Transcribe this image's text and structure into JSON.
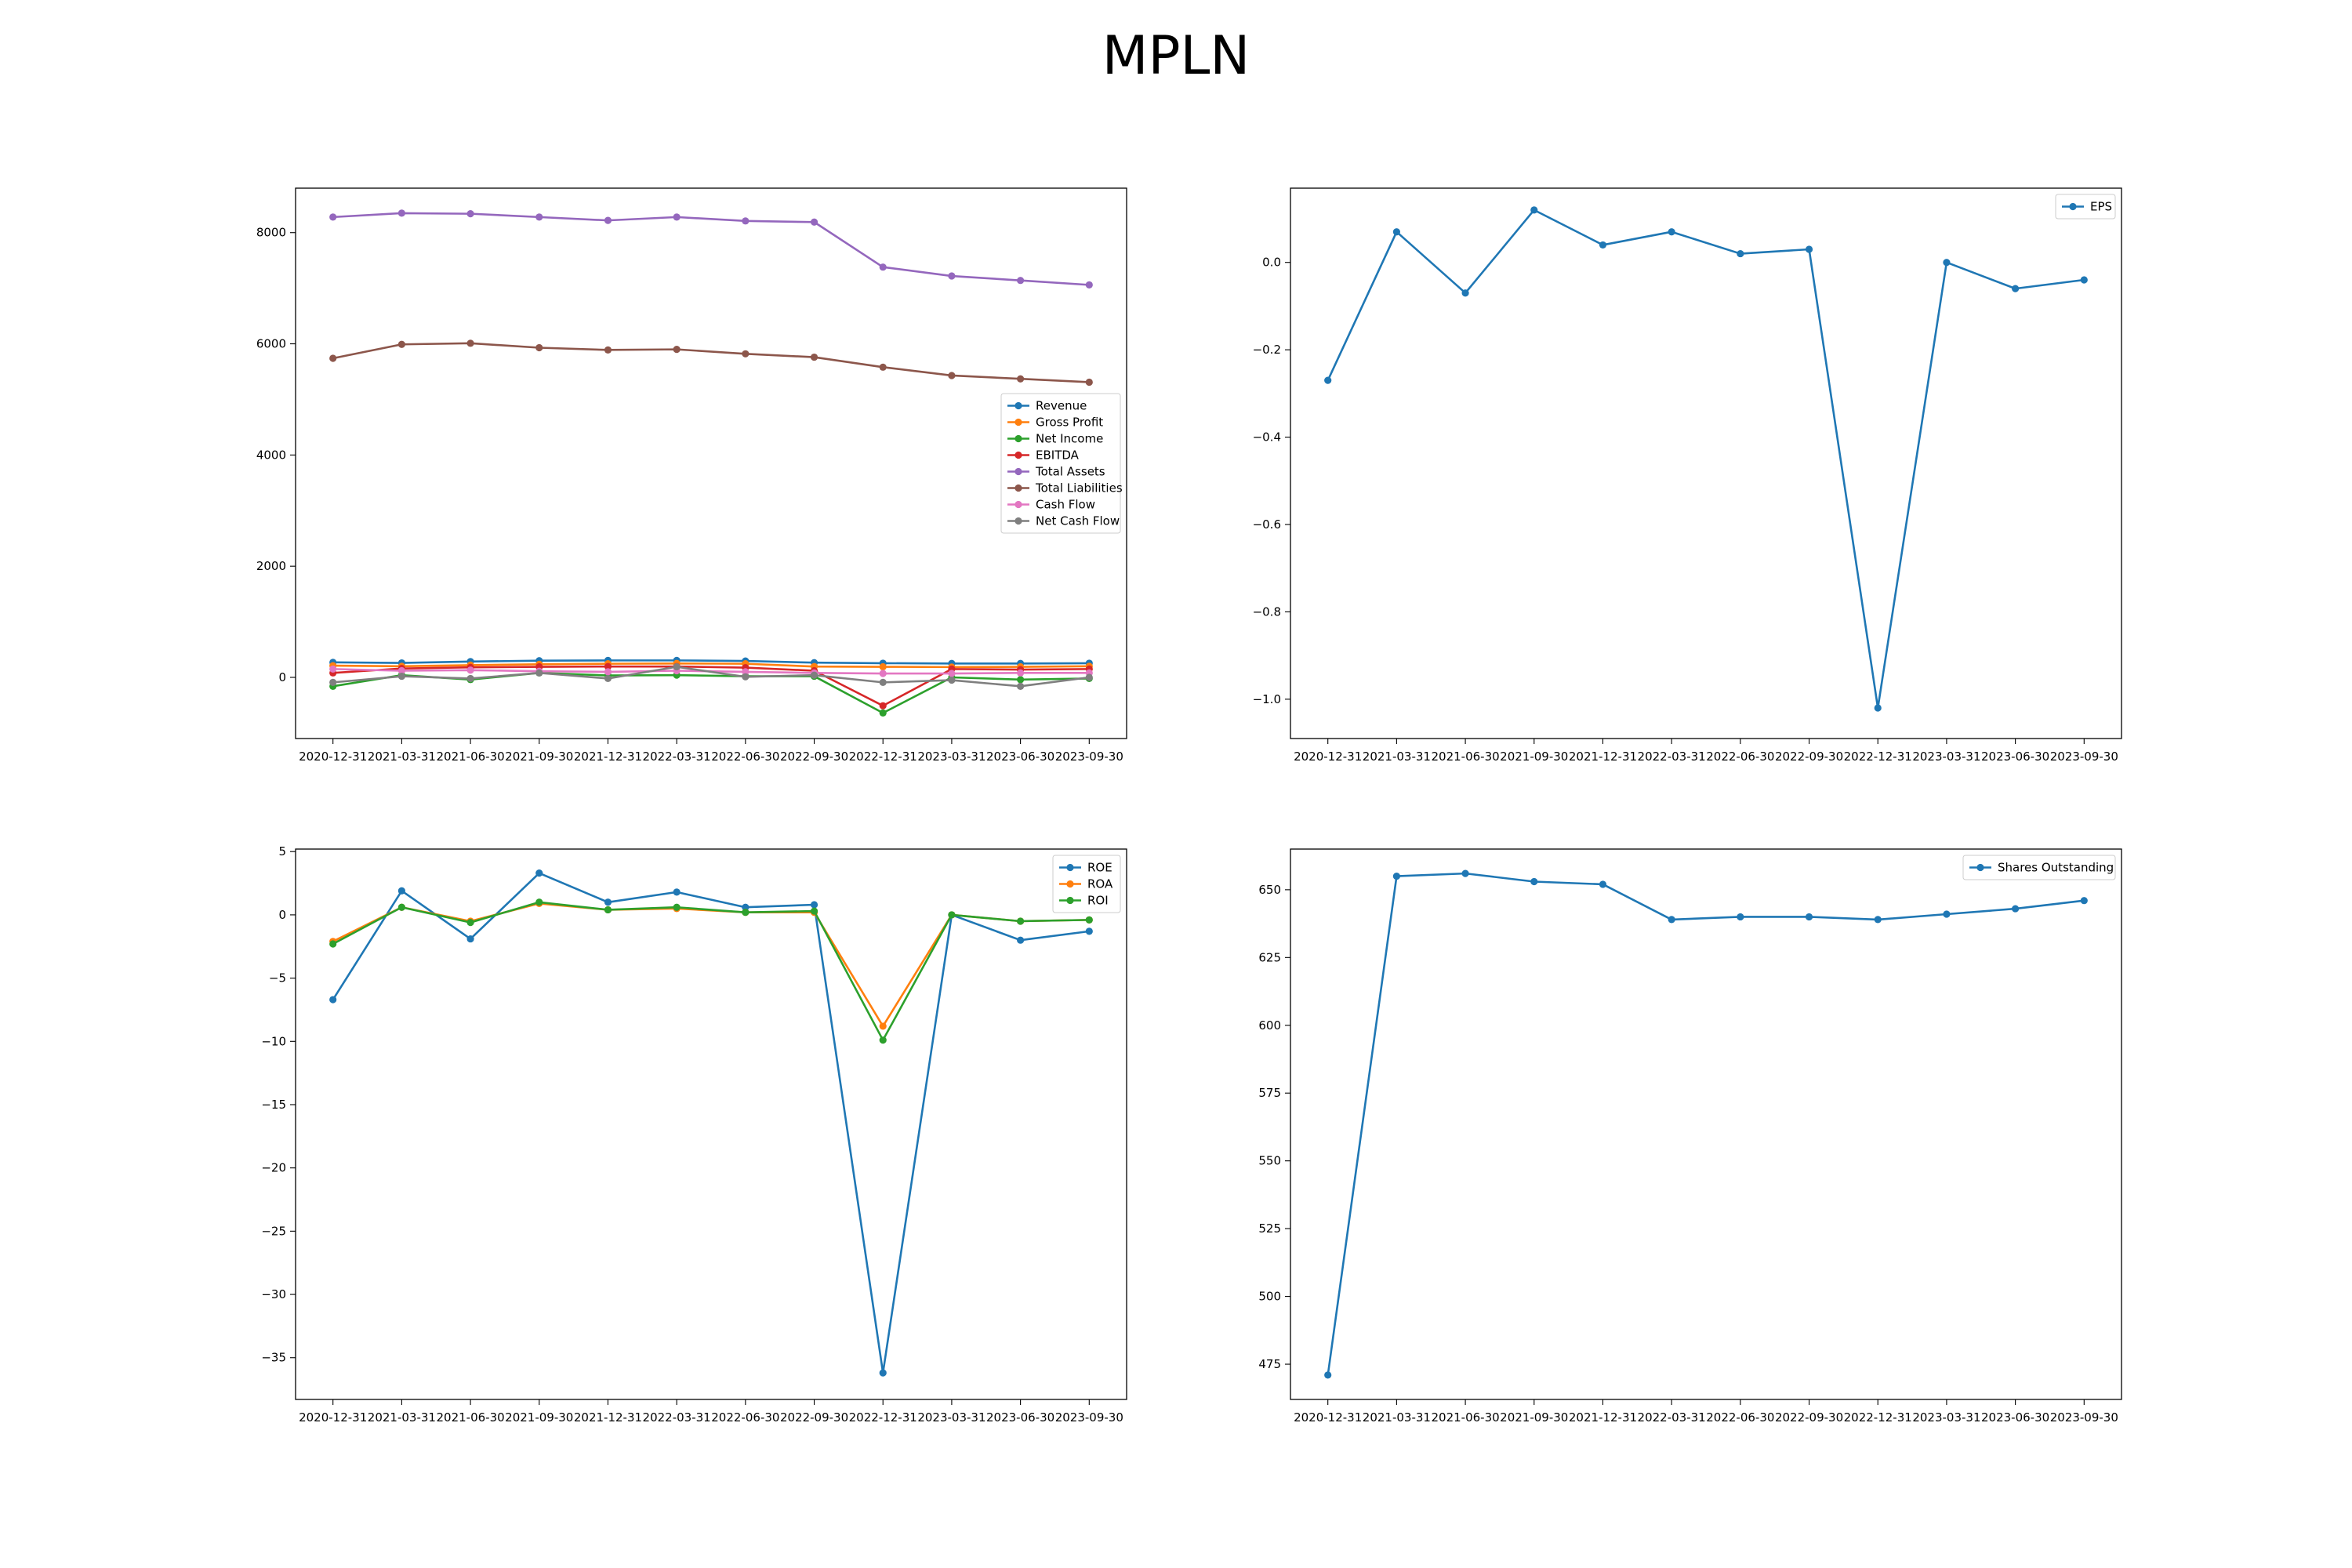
{
  "figure": {
    "title": "MPLN"
  },
  "chart_data": [
    {
      "type": "line",
      "title": "",
      "xlabel": "",
      "ylabel": "",
      "categories": [
        "2020-12-31",
        "2021-03-31",
        "2021-06-30",
        "2021-09-30",
        "2021-12-31",
        "2022-03-31",
        "2022-06-30",
        "2022-09-30",
        "2022-12-31",
        "2023-03-31",
        "2023-06-30",
        "2023-09-30"
      ],
      "ylim": [
        -1100,
        8800
      ],
      "yticks": [
        0,
        2000,
        4000,
        6000,
        8000
      ],
      "legend_position": "center-right",
      "series": [
        {
          "name": "Revenue",
          "color": "#1f77b4",
          "values": [
            270,
            260,
            285,
            300,
            305,
            305,
            295,
            265,
            255,
            250,
            250,
            255
          ]
        },
        {
          "name": "Gross Profit",
          "color": "#ff7f0e",
          "values": [
            210,
            200,
            220,
            235,
            245,
            250,
            245,
            195,
            190,
            185,
            190,
            200
          ]
        },
        {
          "name": "Net Income",
          "color": "#2ca02c",
          "values": [
            -160,
            40,
            -40,
            80,
            35,
            40,
            20,
            20,
            -640,
            0,
            -40,
            -20
          ]
        },
        {
          "name": "EBITDA",
          "color": "#d62728",
          "values": [
            80,
            160,
            180,
            190,
            195,
            195,
            175,
            120,
            -510,
            150,
            140,
            150
          ]
        },
        {
          "name": "Total Assets",
          "color": "#9467bd",
          "values": [
            8280,
            8350,
            8340,
            8280,
            8220,
            8280,
            8210,
            8190,
            7380,
            7220,
            7140,
            7060
          ]
        },
        {
          "name": "Total Liabilities",
          "color": "#8c564b",
          "values": [
            5740,
            5990,
            6010,
            5930,
            5890,
            5900,
            5820,
            5760,
            5580,
            5430,
            5370,
            5310
          ]
        },
        {
          "name": "Cash Flow",
          "color": "#e377c2",
          "values": [
            150,
            120,
            130,
            110,
            100,
            120,
            100,
            80,
            70,
            70,
            80,
            80
          ]
        },
        {
          "name": "Net Cash Flow",
          "color": "#7f7f7f",
          "values": [
            -90,
            20,
            -20,
            80,
            -20,
            190,
            10,
            40,
            -90,
            -50,
            -160,
            0
          ]
        }
      ]
    },
    {
      "type": "line",
      "title": "",
      "xlabel": "",
      "ylabel": "",
      "categories": [
        "2020-12-31",
        "2021-03-31",
        "2021-06-30",
        "2021-09-30",
        "2021-12-31",
        "2022-03-31",
        "2022-06-30",
        "2022-09-30",
        "2022-12-31",
        "2023-03-31",
        "2023-06-30",
        "2023-09-30"
      ],
      "ylim": [
        -1.09,
        0.17
      ],
      "yticks": [
        -1.0,
        -0.8,
        -0.6,
        -0.4,
        -0.2,
        0.0
      ],
      "legend_position": "top-right",
      "series": [
        {
          "name": "EPS",
          "color": "#1f77b4",
          "values": [
            -0.27,
            0.07,
            -0.07,
            0.12,
            0.04,
            0.07,
            0.02,
            0.03,
            -1.02,
            0.0,
            -0.06,
            -0.04
          ]
        }
      ]
    },
    {
      "type": "line",
      "title": "",
      "xlabel": "",
      "ylabel": "",
      "categories": [
        "2020-12-31",
        "2021-03-31",
        "2021-06-30",
        "2021-09-30",
        "2021-12-31",
        "2022-03-31",
        "2022-06-30",
        "2022-09-30",
        "2022-12-31",
        "2023-03-31",
        "2023-06-30",
        "2023-09-30"
      ],
      "ylim": [
        -38.3,
        5.2
      ],
      "yticks": [
        -35,
        -30,
        -25,
        -20,
        -15,
        -10,
        -5,
        0,
        5
      ],
      "legend_position": "top-right",
      "series": [
        {
          "name": "ROE",
          "color": "#1f77b4",
          "values": [
            -6.7,
            1.9,
            -1.9,
            3.3,
            1.0,
            1.8,
            0.6,
            0.8,
            -36.2,
            0.0,
            -2.0,
            -1.3
          ]
        },
        {
          "name": "ROA",
          "color": "#ff7f0e",
          "values": [
            -2.1,
            0.6,
            -0.5,
            0.9,
            0.4,
            0.5,
            0.2,
            0.2,
            -8.8,
            0.0,
            -0.5,
            -0.4
          ]
        },
        {
          "name": "ROI",
          "color": "#2ca02c",
          "values": [
            -2.3,
            0.6,
            -0.6,
            1.0,
            0.4,
            0.6,
            0.2,
            0.3,
            -9.9,
            0.0,
            -0.5,
            -0.4
          ]
        }
      ]
    },
    {
      "type": "line",
      "title": "",
      "xlabel": "",
      "ylabel": "",
      "categories": [
        "2020-12-31",
        "2021-03-31",
        "2021-06-30",
        "2021-09-30",
        "2021-12-31",
        "2022-03-31",
        "2022-06-30",
        "2022-09-30",
        "2022-12-31",
        "2023-03-31",
        "2023-06-30",
        "2023-09-30"
      ],
      "ylim": [
        462,
        665
      ],
      "yticks": [
        475,
        500,
        525,
        550,
        575,
        600,
        625,
        650
      ],
      "legend_position": "top-right",
      "series": [
        {
          "name": "Shares Outstanding",
          "color": "#1f77b4",
          "values": [
            471,
            655,
            656,
            653,
            652,
            639,
            640,
            640,
            639,
            641,
            643,
            646
          ]
        }
      ]
    }
  ]
}
